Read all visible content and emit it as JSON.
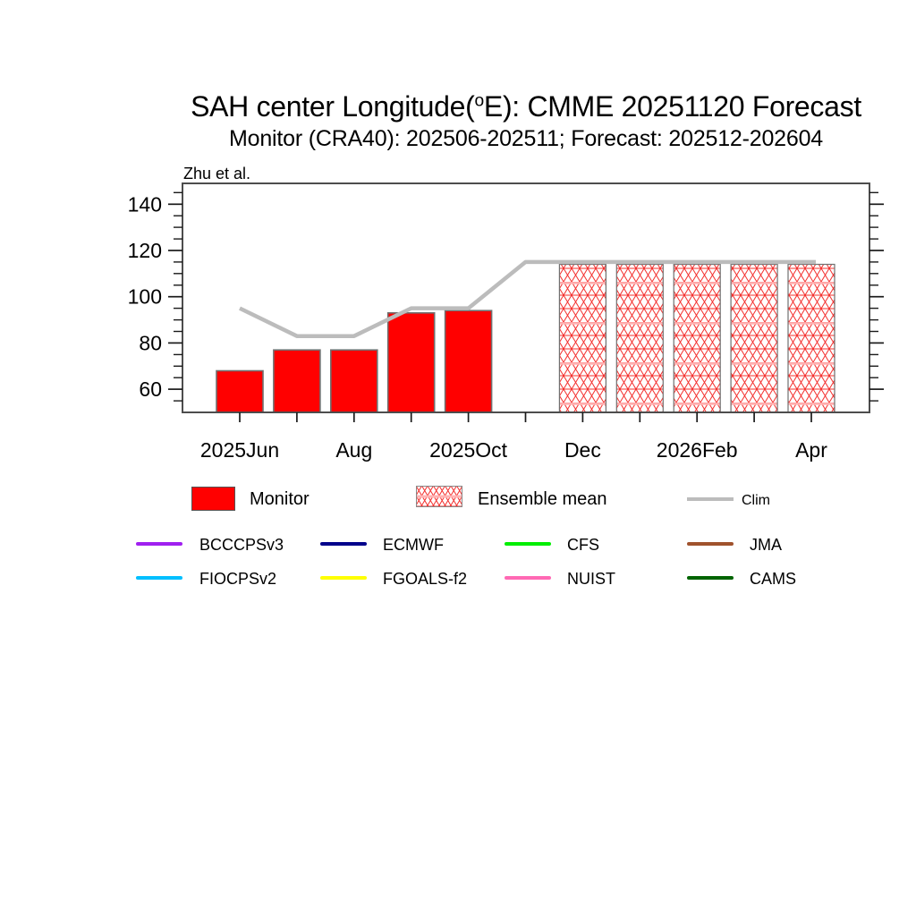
{
  "header": {
    "title_prefix": "SAH center Longitude(",
    "title_sup": "o",
    "title_suffix": "E): CMME 20251120 Forecast",
    "subtitle": "Monitor (CRA40): 202506-202511; Forecast: 202512-202604",
    "annotation": "Zhu et al."
  },
  "chart_data": {
    "type": "bar",
    "months": [
      "2025Jun",
      "2025Jul",
      "2025Aug",
      "2025Sep",
      "2025Oct",
      "2025Nov",
      "2025Dec",
      "2026Jan",
      "2026Feb",
      "2026Mar",
      "2026Apr"
    ],
    "x_tick_labels": [
      "2025Jun",
      "",
      "Aug",
      "",
      "2025Oct",
      "",
      "Dec",
      "",
      "2026Feb",
      "",
      "Apr"
    ],
    "series": [
      {
        "name": "Monitor",
        "type": "bar",
        "pattern": "solid",
        "color": "#ff0000",
        "values": [
          68,
          77,
          77,
          93,
          94,
          null,
          null,
          null,
          null,
          null,
          null
        ]
      },
      {
        "name": "Ensemble mean",
        "type": "bar",
        "pattern": "hatch",
        "color": "#ff0000",
        "values": [
          null,
          null,
          null,
          null,
          null,
          null,
          114,
          114,
          114,
          114,
          114
        ]
      },
      {
        "name": "Clim",
        "type": "line",
        "color": "#bcbcbc",
        "values": [
          95,
          83,
          83,
          95,
          95,
          115,
          115,
          115,
          115,
          115,
          115
        ]
      }
    ],
    "ylim": [
      50,
      149
    ],
    "y_major_ticks": [
      60,
      80,
      100,
      120,
      140
    ],
    "y_minor_step": 5,
    "grid": false,
    "legend_position": "bottom"
  },
  "legend_main": {
    "monitor_label": "Monitor",
    "ensemble_label": "Ensemble mean",
    "clim_label": "Clim"
  },
  "legend_models": [
    {
      "label": "BCCCPSv3",
      "color": "#a020f0"
    },
    {
      "label": "ECMWF",
      "color": "#00008b"
    },
    {
      "label": "CFS",
      "color": "#00ee00"
    },
    {
      "label": "JMA",
      "color": "#a0522d"
    },
    {
      "label": "FIOCPSv2",
      "color": "#00bfff"
    },
    {
      "label": "FGOALS-f2",
      "color": "#ffff00"
    },
    {
      "label": "NUIST",
      "color": "#ff69b4"
    },
    {
      "label": "CAMS",
      "color": "#006400"
    }
  ],
  "colors": {
    "monitor_fill": "#ff0000",
    "hatch_red": "#f4302e",
    "hatch_pink_band": "#ffb3b3",
    "clim_line": "#bcbcbc",
    "bar_outline": "#707070",
    "frame": "#4d4d4d",
    "tick": "#1a1a1a"
  }
}
